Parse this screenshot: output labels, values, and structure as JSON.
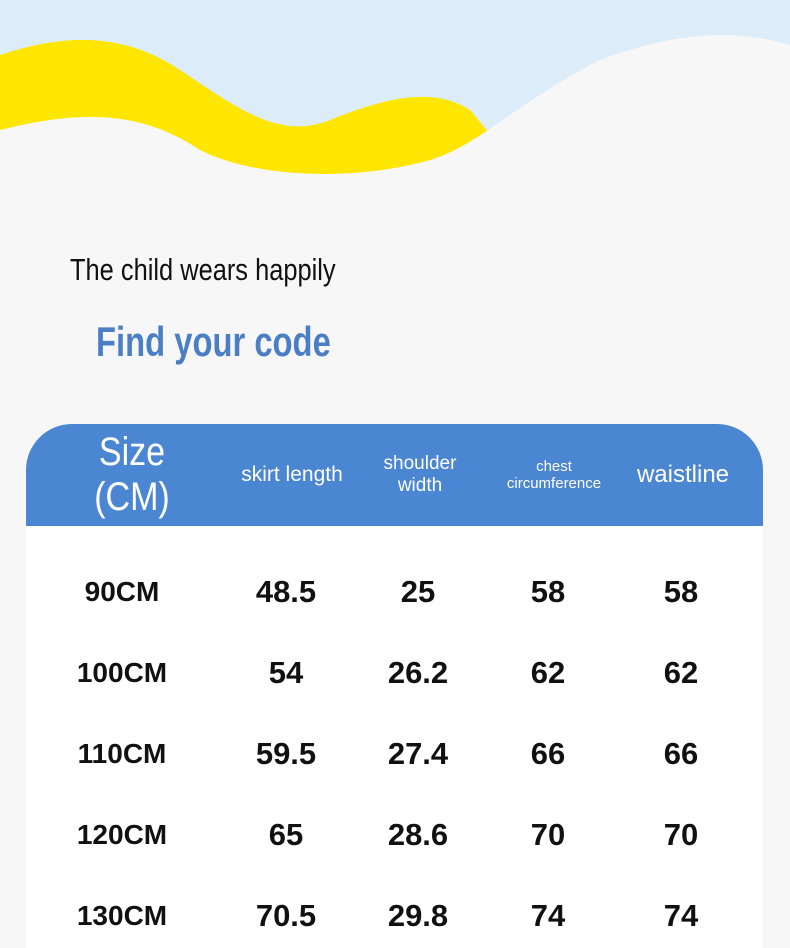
{
  "header": {
    "tagline": "The child wears happily",
    "subtitle": "Find your code"
  },
  "table": {
    "columns": [
      "Size (CM)",
      "skirt length",
      "shoulder width",
      "chest circumference",
      "waistline"
    ],
    "rows": [
      [
        "90CM",
        "48.5",
        "25",
        "58",
        "58"
      ],
      [
        "100CM",
        "54",
        "26.2",
        "62",
        "62"
      ],
      [
        "110CM",
        "59.5",
        "27.4",
        "66",
        "66"
      ],
      [
        "120CM",
        "65",
        "28.6",
        "70",
        "70"
      ],
      [
        "130CM",
        "70.5",
        "29.8",
        "74",
        "74"
      ]
    ]
  }
}
